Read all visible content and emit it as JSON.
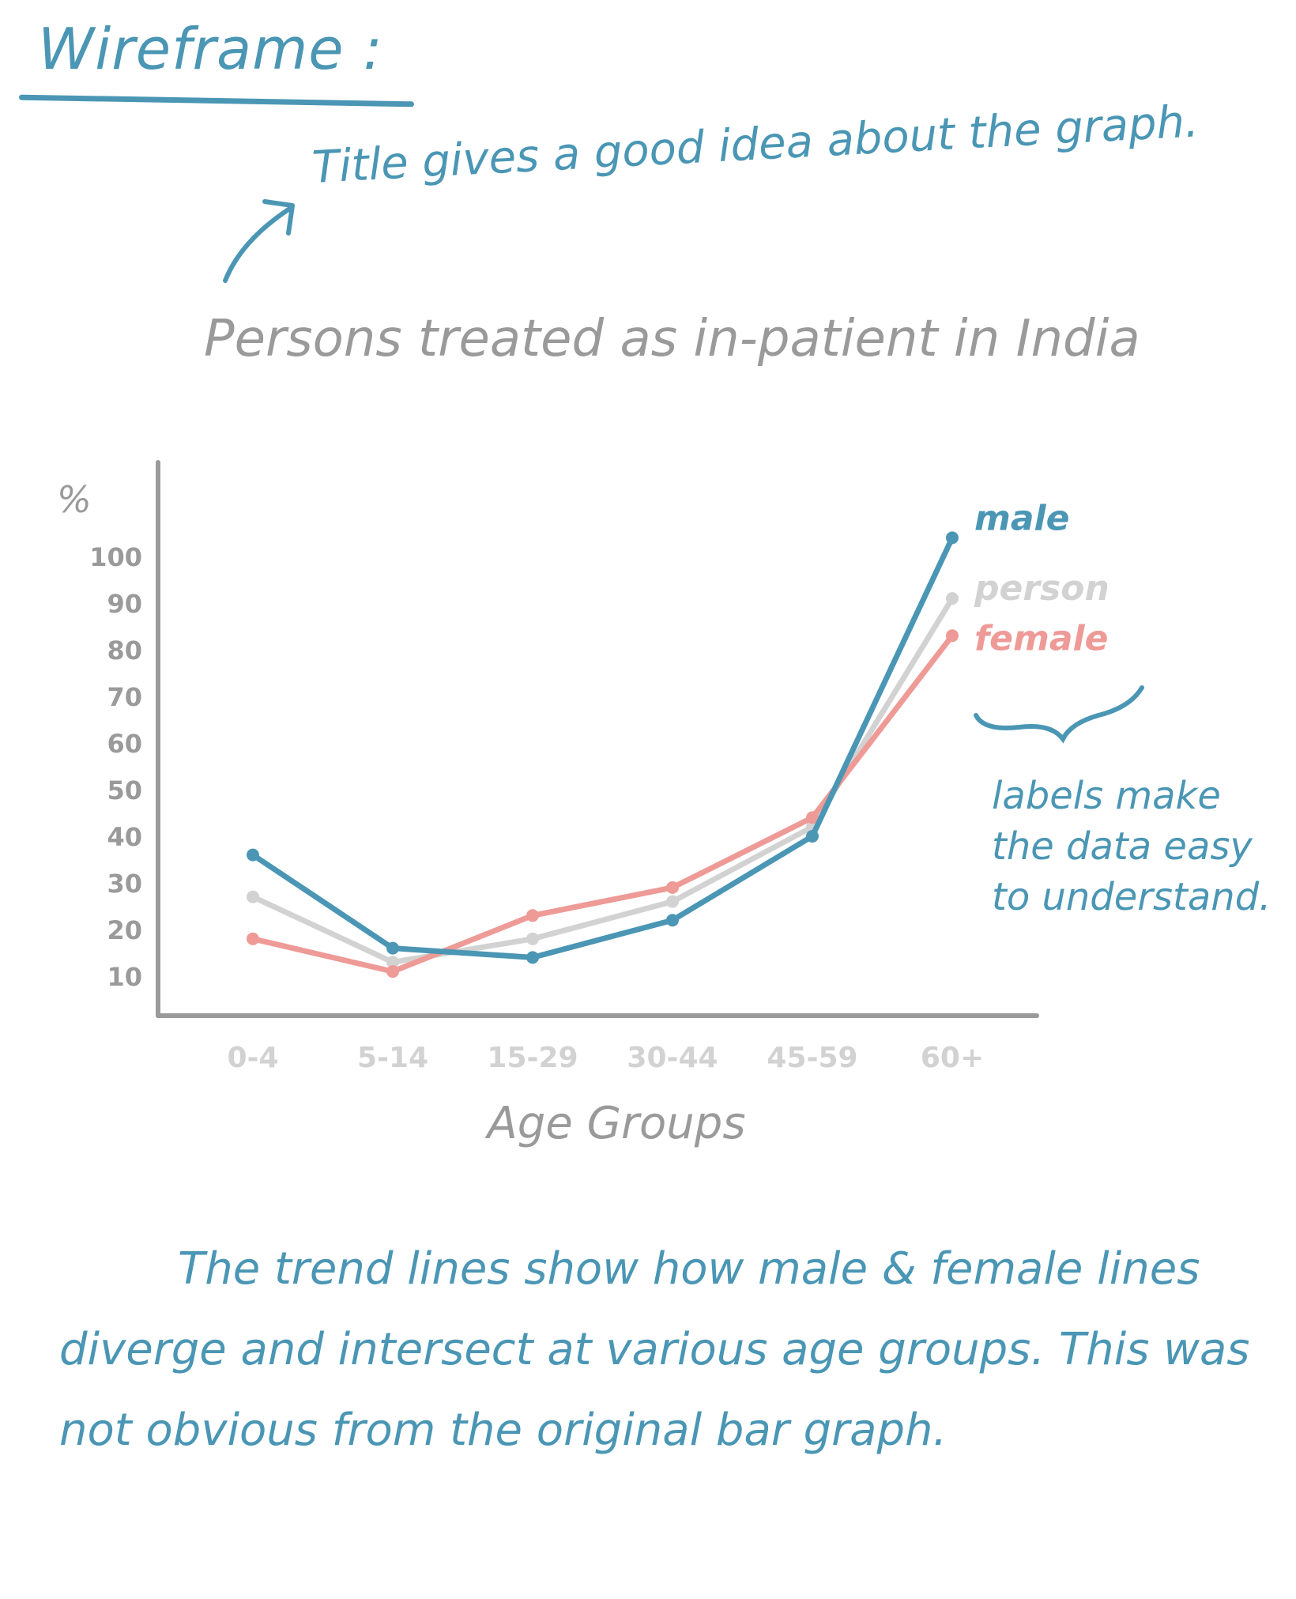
{
  "heading": "Wireframe :",
  "annotations": {
    "title_note": "Title gives a good idea about the graph.",
    "labels_note": "labels make the data easy to understand.",
    "bottom_note": "The trend lines show how male & female lines diverge and intersect at various age groups. This was not obvious from the original bar graph."
  },
  "colors": {
    "male": "#4a96b4",
    "person": "#d2d2d2",
    "female": "#ee9a96",
    "axis": "#9a9a9a",
    "annotation": "#4a96b4"
  },
  "chart_data": {
    "type": "line",
    "title": "Persons treated as in-patient in India",
    "xlabel": "Age Groups",
    "ylabel": "%",
    "categories": [
      "0-4",
      "5-14",
      "15-29",
      "30-44",
      "45-59",
      "60+"
    ],
    "yticks": [
      10,
      20,
      30,
      40,
      50,
      60,
      70,
      80,
      90,
      100
    ],
    "ylim": [
      0,
      110
    ],
    "legend": "end-of-line labels",
    "series": [
      {
        "name": "male",
        "color": "#4a96b4",
        "values": [
          36,
          16,
          14,
          22,
          40,
          104
        ]
      },
      {
        "name": "person",
        "color": "#d2d2d2",
        "values": [
          27,
          13,
          18,
          26,
          42,
          91
        ]
      },
      {
        "name": "female",
        "color": "#ee9a96",
        "values": [
          18,
          11,
          23,
          29,
          44,
          83
        ]
      }
    ]
  }
}
